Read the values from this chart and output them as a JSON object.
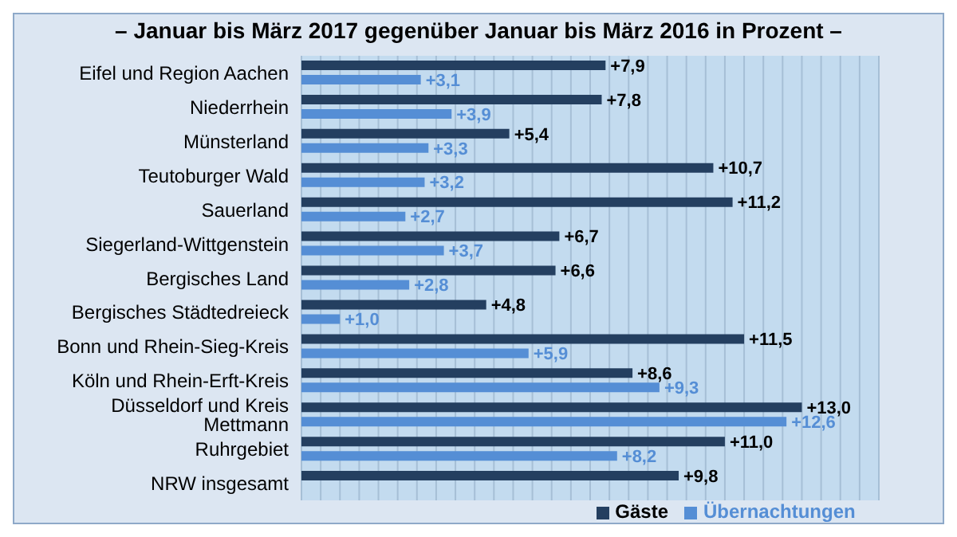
{
  "chart_data": {
    "type": "bar",
    "orientation": "horizontal",
    "title": "– Januar bis März 2017 gegenüber Januar bis März 2016 in Prozent –",
    "categories": [
      "Eifel und Region Aachen",
      "Niederrhein",
      "Münsterland",
      "Teutoburger Wald",
      "Sauerland",
      "Siegerland-Wittgenstein",
      "Bergisches Land",
      "Bergisches Städtedreieck",
      "Bonn und Rhein-Sieg-Kreis",
      "Köln und Rhein-Erft-Kreis",
      "Düsseldorf und Kreis Mettmann",
      "Ruhrgebiet",
      "NRW insgesamt"
    ],
    "series": [
      {
        "name": "Gäste",
        "color": "#243f60",
        "values": [
          7.9,
          7.8,
          5.4,
          10.7,
          11.2,
          6.7,
          6.6,
          4.8,
          11.5,
          8.6,
          13.0,
          11.0,
          9.8
        ],
        "value_labels": [
          "+7,9",
          "+7,8",
          "+5,4",
          "+10,7",
          "+11,2",
          "+6,7",
          "+6,6",
          "+4,8",
          "+11,5",
          "+8,6",
          "+13,0",
          "+11,0",
          "+9,8"
        ]
      },
      {
        "name": "Übernachtungen",
        "color": "#558ed5",
        "values": [
          3.1,
          3.9,
          3.3,
          3.2,
          2.7,
          3.7,
          2.8,
          1.0,
          5.9,
          9.3,
          12.6,
          8.2,
          null
        ],
        "value_labels": [
          "+3,1",
          "+3,9",
          "+3,3",
          "+3,2",
          "+2,7",
          "+3,7",
          "+2,8",
          "+1,0",
          "+5,9",
          "+9,3",
          "+12,6",
          "+8,2",
          null
        ]
      }
    ],
    "xlim": [
      0,
      15
    ],
    "xticks": [
      {
        "value": 0,
        "label": null
      },
      {
        "value": 0.5,
        "label": null
      },
      {
        "value": 1,
        "label": null
      },
      {
        "value": 1.5,
        "label": null
      },
      {
        "value": 2,
        "label": null
      },
      {
        "value": 2.5,
        "label": null
      },
      {
        "value": 3,
        "label": null
      },
      {
        "value": 3.5,
        "label": null
      },
      {
        "value": 4,
        "label": null
      },
      {
        "value": 4.5,
        "label": null
      },
      {
        "value": 5,
        "label": null
      },
      {
        "value": 5.5,
        "label": null
      },
      {
        "value": 6,
        "label": null
      },
      {
        "value": 6.5,
        "label": null
      },
      {
        "value": 7,
        "label": null
      },
      {
        "value": 7.5,
        "label": null
      },
      {
        "value": 8,
        "label": null
      },
      {
        "value": 8.5,
        "label": null
      },
      {
        "value": 9,
        "label": null
      },
      {
        "value": 9.5,
        "label": null
      },
      {
        "value": 10,
        "label": null
      },
      {
        "value": 10.5,
        "label": null
      },
      {
        "value": 11,
        "label": null
      },
      {
        "value": 11.5,
        "label": null
      },
      {
        "value": 12,
        "label": null
      },
      {
        "value": 12.5,
        "label": null
      },
      {
        "value": 13,
        "label": null
      },
      {
        "value": 13.5,
        "label": null
      },
      {
        "value": 14,
        "label": null
      },
      {
        "value": 14.5,
        "label": null
      },
      {
        "value": 15,
        "label": null
      }
    ],
    "grid": "x",
    "legend": "bottom",
    "tick_labels": "y"
  }
}
